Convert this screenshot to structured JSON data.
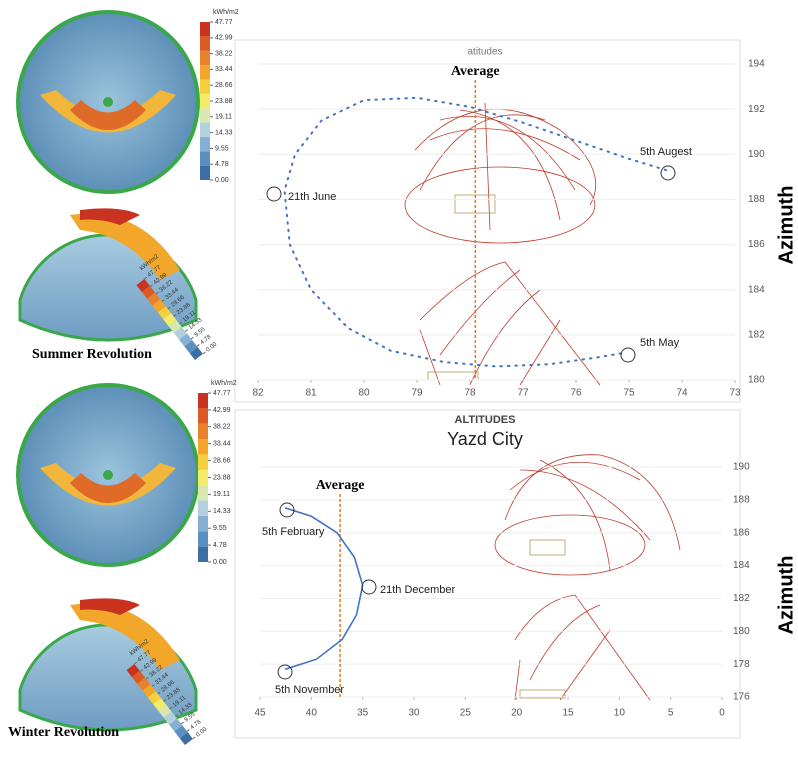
{
  "chart_data": [
    {
      "type": "line",
      "title": "atitudes",
      "ylabel": "Azimuth",
      "xlim": [
        82,
        73
      ],
      "ylim": [
        180,
        194
      ],
      "xticks": [
        82,
        81,
        80,
        79,
        78,
        77,
        76,
        75,
        74,
        73
      ],
      "yticks": [
        180,
        182,
        184,
        186,
        188,
        190,
        192,
        194
      ],
      "average": {
        "label": "Average",
        "value": 77.9
      },
      "annotations": [
        "21th June",
        "5th Augest",
        "5th May"
      ],
      "series": [
        {
          "color": "#4472c4",
          "x": [
            74.3,
            75,
            76,
            77,
            78,
            79,
            80,
            80.8,
            81.3,
            81.5,
            81.4,
            81,
            80.3,
            79.5,
            78.5,
            77.5,
            76.5,
            75.6,
            75.1
          ],
          "values": [
            189.3,
            189.8,
            190.6,
            191.4,
            192.1,
            192.5,
            192.4,
            191.5,
            190,
            188.4,
            186,
            184,
            182.3,
            181.3,
            180.8,
            180.6,
            180.7,
            181,
            181.2
          ]
        }
      ]
    },
    {
      "type": "line",
      "title": "ALTITUDES",
      "subtitle": "Yazd City",
      "ylabel": "Azimuth",
      "xlim": [
        45,
        0
      ],
      "ylim": [
        176,
        190
      ],
      "xticks": [
        45,
        40,
        35,
        30,
        25,
        20,
        15,
        10,
        5,
        0
      ],
      "yticks": [
        176,
        178,
        180,
        182,
        184,
        186,
        188,
        190
      ],
      "average": {
        "label": "Average",
        "value": 37.2
      },
      "annotations": [
        "5th February",
        "21th December",
        "5th November"
      ],
      "series": [
        {
          "color": "#4472c4",
          "x": [
            42.5,
            40,
            37.5,
            35.8,
            35,
            35.6,
            37,
            39.5,
            42.5
          ],
          "values": [
            187.5,
            187,
            186,
            184.5,
            182.8,
            181,
            179.5,
            178.3,
            177.7
          ]
        }
      ]
    }
  ],
  "panels": {
    "summer": {
      "label": "Summer Revolution",
      "unit": "kWh/m2",
      "colors": [
        "#3c6ea6",
        "#5b8fc0",
        "#86b0d2",
        "#b2d0de",
        "#d8e8b0",
        "#f2ec6a",
        "#f6cf3c",
        "#f2a62a",
        "#e8822a",
        "#dc5a24",
        "#c8321e"
      ],
      "ticks": [
        47.77,
        42.99,
        38.22,
        33.44,
        28.66,
        23.88,
        19.11,
        14.33,
        9.55,
        4.78,
        {
          "value": 0,
          "label": "0.00"
        }
      ]
    },
    "winter": {
      "label": "Winter Revolution",
      "unit": "kWh/m2",
      "colors": [
        "#3c6ea6",
        "#5b8fc0",
        "#86b0d2",
        "#b2d0de",
        "#d8e8b0",
        "#f2ec6a",
        "#f6cf3c",
        "#f2a62a",
        "#e8822a",
        "#dc5a24",
        "#c8321e"
      ],
      "ticks": [
        47.77,
        42.99,
        38.22,
        33.44,
        28.66,
        23.88,
        19.11,
        14.33,
        9.55,
        4.78,
        {
          "value": 0,
          "label": "0.00"
        }
      ]
    }
  }
}
